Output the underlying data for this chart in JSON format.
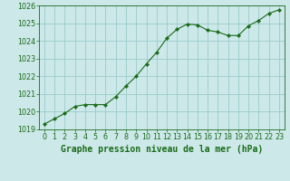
{
  "x": [
    0,
    1,
    2,
    3,
    4,
    5,
    6,
    7,
    8,
    9,
    10,
    11,
    12,
    13,
    14,
    15,
    16,
    17,
    18,
    19,
    20,
    21,
    22,
    23
  ],
  "y": [
    1019.3,
    1019.6,
    1019.9,
    1020.3,
    1020.4,
    1020.4,
    1020.4,
    1020.85,
    1021.45,
    1022.0,
    1022.7,
    1023.35,
    1024.15,
    1024.65,
    1024.95,
    1024.9,
    1024.6,
    1024.5,
    1024.3,
    1024.3,
    1024.85,
    1025.15,
    1025.55,
    1025.75
  ],
  "line_color": "#1a6b1a",
  "marker": "D",
  "marker_size": 2.2,
  "bg_color": "#cce8e8",
  "grid_color": "#99cccc",
  "title": "Graphe pression niveau de la mer (hPa)",
  "tick_color": "#1a6b1a",
  "ylim": [
    1019.0,
    1026.0
  ],
  "xlim": [
    -0.5,
    23.5
  ],
  "yticks": [
    1019,
    1020,
    1021,
    1022,
    1023,
    1024,
    1025,
    1026
  ],
  "xticks": [
    0,
    1,
    2,
    3,
    4,
    5,
    6,
    7,
    8,
    9,
    10,
    11,
    12,
    13,
    14,
    15,
    16,
    17,
    18,
    19,
    20,
    21,
    22,
    23
  ],
  "title_fontsize": 7.0,
  "tick_fontsize": 5.8
}
